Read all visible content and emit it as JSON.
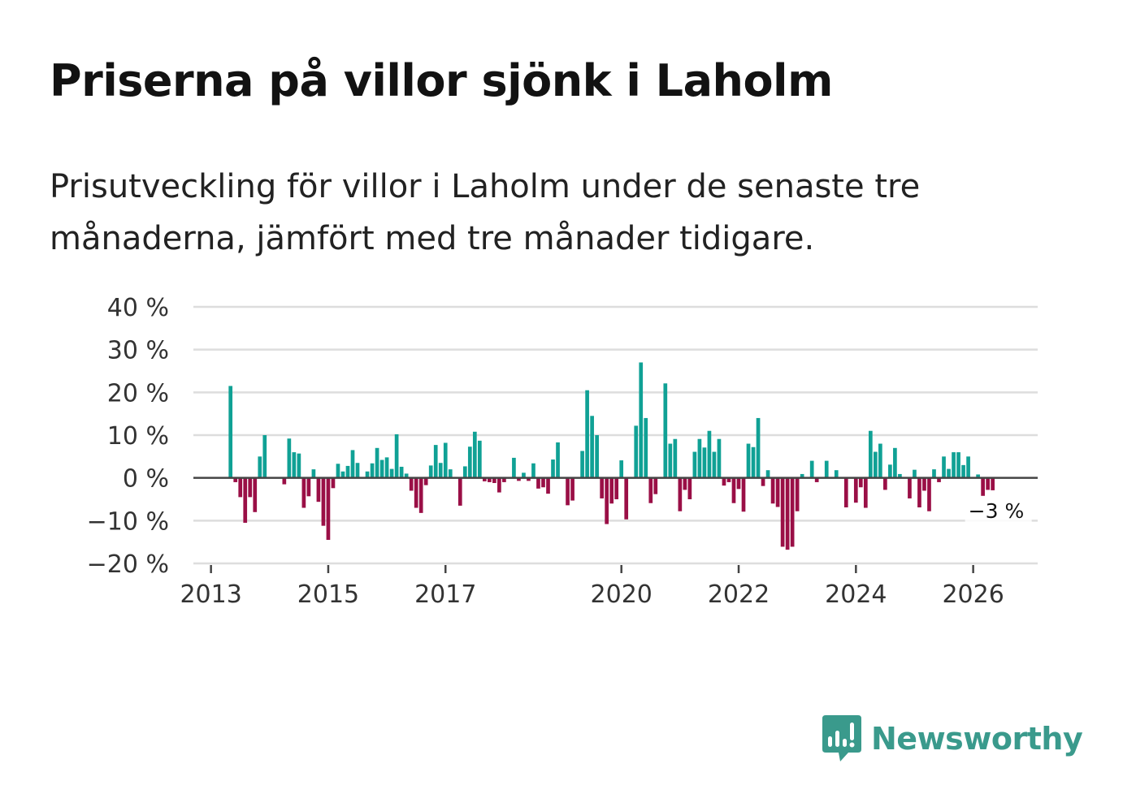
{
  "title": "Priserna på villor sjönk i Laholm",
  "subtitle": "Prisutveckling för villor i Laholm under de senaste tre månaderna, jämfört med tre månader tidigare.",
  "brand": {
    "name": "Newsworthy",
    "color": "#3a9a8c"
  },
  "colors": {
    "positive": "#10a195",
    "negative": "#9a0f46",
    "grid": "#dddddd",
    "zero": "#444444"
  },
  "chart_data": {
    "type": "bar",
    "title": "Priserna på villor sjönk i Laholm",
    "ylabel": "",
    "xlabel": "",
    "ylim": [
      -20,
      40
    ],
    "yticks": [
      40,
      30,
      20,
      10,
      0,
      -10,
      -20
    ],
    "ytick_labels": [
      "40 %",
      "30 %",
      "20 %",
      "10 %",
      "0 %",
      "−10 %",
      "−20 %"
    ],
    "xticks": [
      2013,
      2015,
      2017,
      2020,
      2022,
      2024,
      2026
    ],
    "xtick_labels": [
      "2013",
      "2015",
      "2017",
      "2020",
      "2022",
      "2024",
      "2026"
    ],
    "xlim": [
      2012.7,
      2027.1
    ],
    "start": 2013.0,
    "step_years": 0.08333,
    "annotation": "−3 %",
    "values": [
      null,
      null,
      null,
      null,
      21.5,
      -1,
      -4.5,
      -10.5,
      -4.5,
      -8,
      5,
      10,
      null,
      null,
      null,
      -1.5,
      9.2,
      6,
      5.7,
      -7,
      -4.3,
      2,
      -5.6,
      -11.2,
      -14.5,
      -2.4,
      3.3,
      1.5,
      2.8,
      6.5,
      3.5,
      null,
      1.5,
      3.4,
      7,
      4.2,
      4.8,
      2.1,
      10.2,
      2.6,
      1,
      -3,
      -7,
      -8.2,
      -1.7,
      2.9,
      7.7,
      3.5,
      8.2,
      2,
      null,
      -6.5,
      2.7,
      7.3,
      10.8,
      8.7,
      -0.8,
      -1,
      -1.2,
      -3.4,
      -1,
      null,
      4.7,
      -0.7,
      1.2,
      -0.7,
      3.4,
      -2.5,
      -2.2,
      -3.7,
      4.3,
      8.3,
      null,
      -6.4,
      -5.3,
      null,
      6.3,
      20.5,
      14.5,
      10,
      -4.8,
      -10.8,
      -6,
      -5,
      4.1,
      -9.7,
      null,
      12.2,
      27,
      14,
      -5.9,
      -3.8,
      null,
      22.1,
      8,
      9.1,
      -7.8,
      -2.8,
      -5,
      6.1,
      9.1,
      7.1,
      11,
      6.1,
      9.1,
      -1.8,
      -1,
      -5.9,
      -2.6,
      -7.9,
      8,
      7.2,
      14,
      -1.9,
      1.8,
      -6,
      -6.8,
      -16.1,
      -16.8,
      -16.1,
      -7.8,
      0.9,
      null,
      4,
      -1,
      null,
      4,
      null,
      1.8,
      null,
      -6.9,
      null,
      -5.8,
      -2.2,
      -7,
      11,
      6.1,
      8,
      -2.8,
      3.1,
      7,
      0.9,
      null,
      -4.8,
      1.9,
      -6.9,
      -3,
      -7.8,
      2,
      -1,
      5,
      2.1,
      6,
      6,
      3,
      5,
      null,
      0.8,
      -4.2,
      -2.8,
      -2.9
    ]
  }
}
